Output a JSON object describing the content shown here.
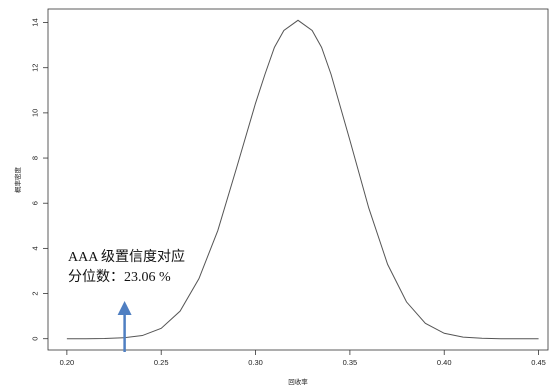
{
  "chart_data": {
    "type": "line",
    "title": "",
    "xlabel": "回收率",
    "ylabel": "概率密度",
    "xlim": [
      0.19,
      0.455
    ],
    "ylim": [
      -0.5,
      14.6
    ],
    "xticks": [
      0.2,
      0.25,
      0.3,
      0.35,
      0.4,
      0.45
    ],
    "xtick_labels": [
      "0.20",
      "0.25",
      "0.30",
      "0.35",
      "0.40",
      "0.45"
    ],
    "yticks": [
      0,
      2,
      4,
      6,
      8,
      10,
      12,
      14
    ],
    "ytick_labels": [
      "0",
      "2",
      "4",
      "6",
      "8",
      "10",
      "12",
      "14"
    ],
    "grid": false,
    "legend": "none",
    "series": [
      {
        "x": [
          0.2,
          0.21,
          0.22,
          0.23,
          0.24,
          0.25,
          0.26,
          0.27,
          0.28,
          0.29,
          0.3,
          0.305,
          0.31,
          0.315,
          0.3225,
          0.33,
          0.335,
          0.34,
          0.35,
          0.36,
          0.37,
          0.38,
          0.39,
          0.4,
          0.41,
          0.42,
          0.43,
          0.44,
          0.45
        ],
        "y": [
          0.0,
          0.0,
          0.01,
          0.04,
          0.14,
          0.46,
          1.22,
          2.66,
          4.79,
          7.58,
          10.43,
          11.71,
          12.9,
          13.65,
          14.1,
          13.65,
          12.9,
          11.71,
          8.79,
          5.79,
          3.29,
          1.63,
          0.68,
          0.24,
          0.07,
          0.02,
          0.0,
          0.0,
          0.0
        ],
        "color": "#555555"
      }
    ],
    "annotation": {
      "line1": "AAA  级置信度对应",
      "line2": "分位数：23.06 %",
      "arrow_x": 0.2306,
      "arrow_color": "#4f7fc2"
    }
  }
}
